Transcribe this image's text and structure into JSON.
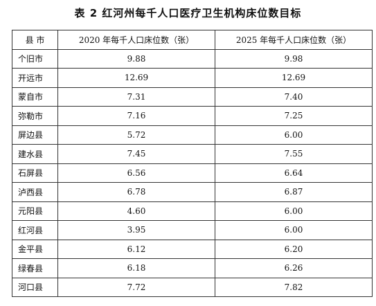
{
  "title": "表 2 红河州每千人口医疗卫生机构床位数目标",
  "table": {
    "headers": [
      "县  市",
      "2020 年每千人口床位数（张）",
      "2025 年每千人口床位数（张）"
    ],
    "rows": [
      {
        "county": "个旧市",
        "v2020": "9.88",
        "v2025": "9.98"
      },
      {
        "county": "开远市",
        "v2020": "12.69",
        "v2025": "12.69"
      },
      {
        "county": "蒙自市",
        "v2020": "7.31",
        "v2025": "7.40"
      },
      {
        "county": "弥勒市",
        "v2020": "7.16",
        "v2025": "7.25"
      },
      {
        "county": "屏边县",
        "v2020": "5.72",
        "v2025": "6.00"
      },
      {
        "county": "建水县",
        "v2020": "7.45",
        "v2025": "7.55"
      },
      {
        "county": "石屏县",
        "v2020": "6.56",
        "v2025": "6.64"
      },
      {
        "county": "泸西县",
        "v2020": "6.78",
        "v2025": "6.87"
      },
      {
        "county": "元阳县",
        "v2020": "4.60",
        "v2025": "6.00"
      },
      {
        "county": "红河县",
        "v2020": "3.95",
        "v2025": "6.00"
      },
      {
        "county": "金平县",
        "v2020": "6.12",
        "v2025": "6.20"
      },
      {
        "county": "绿春县",
        "v2020": "6.18",
        "v2025": "6.26"
      },
      {
        "county": "河口县",
        "v2020": "7.72",
        "v2025": "7.82"
      }
    ]
  }
}
